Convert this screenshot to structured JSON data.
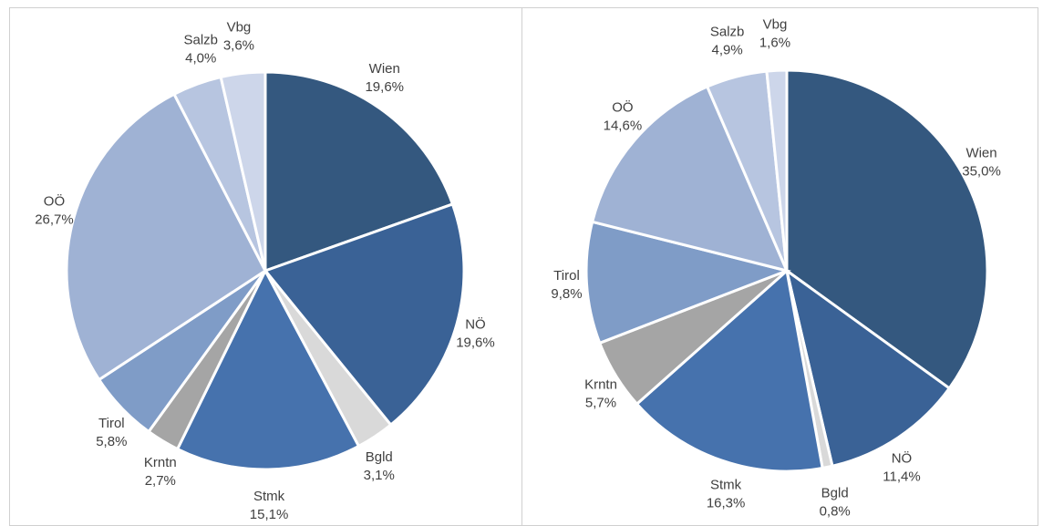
{
  "chart_data": [
    {
      "type": "pie",
      "categories": [
        "Wien",
        "NÖ",
        "Bgld",
        "Stmk",
        "Krntn",
        "Tirol",
        "OÖ",
        "Salzb",
        "Vbg"
      ],
      "values": [
        19.6,
        19.6,
        3.1,
        15.1,
        2.7,
        5.8,
        26.7,
        4.0,
        3.6
      ],
      "value_labels": [
        "19,6%",
        "19,6%",
        "3,1%",
        "15,1%",
        "2,7%",
        "5,8%",
        "26,7%",
        "4,0%",
        "3,6%"
      ],
      "colors": [
        "#34587f",
        "#3a6296",
        "#d9d9d9",
        "#4672ad",
        "#a5a5a5",
        "#7f9cc7",
        "#9fb2d4",
        "#b7c5e0",
        "#cdd6ea"
      ]
    },
    {
      "type": "pie",
      "categories": [
        "Wien",
        "NÖ",
        "Bgld",
        "Stmk",
        "Krntn",
        "Tirol",
        "OÖ",
        "Salzb",
        "Vbg"
      ],
      "values": [
        35.0,
        11.4,
        0.8,
        16.3,
        5.7,
        9.8,
        14.6,
        4.9,
        1.6
      ],
      "value_labels": [
        "35,0%",
        "11,4%",
        "0,8%",
        "16,3%",
        "5,7%",
        "9,8%",
        "14,6%",
        "4,9%",
        "1,6%"
      ],
      "colors": [
        "#34587f",
        "#3a6296",
        "#d9d9d9",
        "#4672ad",
        "#a5a5a5",
        "#7f9cc7",
        "#9fb2d4",
        "#b7c5e0",
        "#cdd6ea"
      ]
    }
  ]
}
